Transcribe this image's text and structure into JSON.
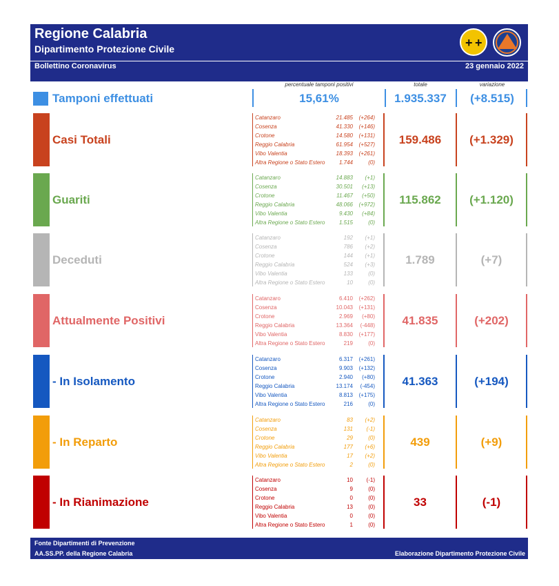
{
  "header": {
    "title": "Regione Calabria",
    "subtitle": "Dipartimento Protezione Civile",
    "bulletin": "Bollettino Coronavirus",
    "date": "23 gennaio 2022",
    "logo_left_icon": "regione-calabria-emblem",
    "logo_right_icon": "protezione-civile-emblem"
  },
  "columns": {
    "pct": "percentuale tamponi positivi",
    "total": "totale",
    "variation": "variazione"
  },
  "tamponi": {
    "label": "Tamponi effettuati",
    "pct": "15,61%",
    "total": "1.935.337",
    "variation": "(+8.515)",
    "color": "#3d8fe3"
  },
  "categories": [
    {
      "label": "Casi Totali",
      "color": "#c8421e",
      "total": "159.486",
      "variation": "(+1.329)",
      "provinces": [
        {
          "name": "Catanzaro",
          "value": "21.485",
          "delta": "(+264)"
        },
        {
          "name": "Cosenza",
          "value": "41.330",
          "delta": "(+146)"
        },
        {
          "name": "Crotone",
          "value": "14.580",
          "delta": "(+131)"
        },
        {
          "name": "Reggio Calabria",
          "value": "61.954",
          "delta": "(+527)"
        },
        {
          "name": "Vibo Valentia",
          "value": "18.393",
          "delta": "(+261)"
        },
        {
          "name": "Altra Regione o Stato Estero",
          "value": "1.744",
          "delta": "(0)"
        }
      ]
    },
    {
      "label": "Guariti",
      "color": "#6aa84f",
      "total": "115.862",
      "variation": "(+1.120)",
      "provinces": [
        {
          "name": "Catanzaro",
          "value": "14.883",
          "delta": "(+1)"
        },
        {
          "name": "Cosenza",
          "value": "30.501",
          "delta": "(+13)"
        },
        {
          "name": "Crotone",
          "value": "11.467",
          "delta": "(+50)"
        },
        {
          "name": "Reggio Calabria",
          "value": "48.066",
          "delta": "(+972)"
        },
        {
          "name": "Vibo Valentia",
          "value": "9.430",
          "delta": "(+84)"
        },
        {
          "name": "Altra Regione o Stato Estero",
          "value": "1.515",
          "delta": "(0)"
        }
      ]
    },
    {
      "label": "Deceduti",
      "color": "#b5b5b5",
      "total": "1.789",
      "variation": "(+7)",
      "provinces": [
        {
          "name": "Catanzaro",
          "value": "192",
          "delta": "(+1)"
        },
        {
          "name": "Cosenza",
          "value": "786",
          "delta": "(+2)"
        },
        {
          "name": "Crotone",
          "value": "144",
          "delta": "(+1)"
        },
        {
          "name": "Reggio Calabria",
          "value": "524",
          "delta": "(+3)"
        },
        {
          "name": "Vibo Valentia",
          "value": "133",
          "delta": "(0)"
        },
        {
          "name": "Altra Regione o Stato Estero",
          "value": "10",
          "delta": "(0)"
        }
      ]
    },
    {
      "label": "Attualmente Positivi",
      "color": "#e06666",
      "total": "41.835",
      "variation": "(+202)",
      "provinces": [
        {
          "name": "Catanzaro",
          "value": "6.410",
          "delta": "(+262)"
        },
        {
          "name": "Cosenza",
          "value": "10.043",
          "delta": "(+131)"
        },
        {
          "name": "Crotone",
          "value": "2.969",
          "delta": "(+80)"
        },
        {
          "name": "Reggio Calabria",
          "value": "13.364",
          "delta": "(-448)"
        },
        {
          "name": "Vibo Valentia",
          "value": "8.830",
          "delta": "(+177)"
        },
        {
          "name": "Altra Regione o Stato Estero",
          "value": "219",
          "delta": "(0)"
        }
      ]
    },
    {
      "label": "- In Isolamento",
      "color": "#1558c0",
      "total": "41.363",
      "variation": "(+194)",
      "provinces": [
        {
          "name": "Catanzaro",
          "value": "6.317",
          "delta": "(+261)"
        },
        {
          "name": "Cosenza",
          "value": "9.903",
          "delta": "(+132)"
        },
        {
          "name": "Crotone",
          "value": "2.940",
          "delta": "(+80)"
        },
        {
          "name": "Reggio Calabria",
          "value": "13.174",
          "delta": "(-454)"
        },
        {
          "name": "Vibo Valentia",
          "value": "8.813",
          "delta": "(+175)"
        },
        {
          "name": "Altra Regione o Stato Estero",
          "value": "216",
          "delta": "(0)"
        }
      ]
    },
    {
      "label": "- In Reparto",
      "color": "#f29d0a",
      "total": "439",
      "variation": "(+9)",
      "provinces": [
        {
          "name": "Catanzaro",
          "value": "83",
          "delta": "(+2)"
        },
        {
          "name": "Cosenza",
          "value": "131",
          "delta": "(-1)"
        },
        {
          "name": "Crotone",
          "value": "29",
          "delta": "(0)"
        },
        {
          "name": "Reggio Calabria",
          "value": "177",
          "delta": "(+6)"
        },
        {
          "name": "Vibo Valentia",
          "value": "17",
          "delta": "(+2)"
        },
        {
          "name": "Altra Regione o Stato Estero",
          "value": "2",
          "delta": "(0)"
        }
      ]
    },
    {
      "label": "- In Rianimazione",
      "color": "#c00000",
      "total": "33",
      "variation": "(-1)",
      "provinces": [
        {
          "name": "Catanzaro",
          "value": "10",
          "delta": "(-1)"
        },
        {
          "name": "Cosenza",
          "value": "9",
          "delta": "(0)"
        },
        {
          "name": "Crotone",
          "value": "0",
          "delta": "(0)"
        },
        {
          "name": "Reggio Calabria",
          "value": "13",
          "delta": "(0)"
        },
        {
          "name": "Vibo Valentia",
          "value": "0",
          "delta": "(0)"
        },
        {
          "name": "Altra Regione o Stato Estero",
          "value": "1",
          "delta": "(0)"
        }
      ]
    }
  ],
  "footer": {
    "source_line1": "Fonte Dipartimenti di Prevenzione",
    "source_line2": "AA.SS.PP.  della Regione Calabria",
    "elaboration": "Elaborazione Dipartimento Protezione Civile"
  }
}
